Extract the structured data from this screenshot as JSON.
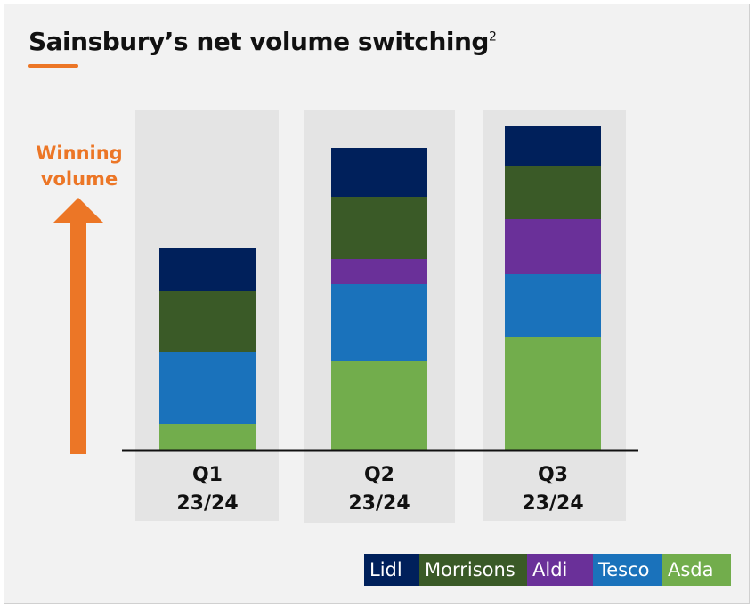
{
  "title": "Sainsbury’s net volume switching",
  "title_superscript": "2",
  "y_annotation": "Winning volume",
  "colors": {
    "accent": "#ec7626",
    "Lidl": "#00205b",
    "Morrisons": "#3a5a27",
    "Aldi": "#6a3099",
    "Tesco": "#1a72bb",
    "Asda": "#72ad4c",
    "panel": "#e4e4e4"
  },
  "chart_data": {
    "type": "bar",
    "stacked": true,
    "title": "Sainsbury’s net volume switching",
    "xlabel": "",
    "ylabel": "Winning volume",
    "categories": [
      [
        "Q1",
        "23/24"
      ],
      [
        "Q2",
        "23/24"
      ],
      [
        "Q3",
        "23/24"
      ]
    ],
    "ylim": [
      0,
      38
    ],
    "note": "relative units; no axis values shown",
    "series": [
      {
        "name": "Asda",
        "values": [
          3.0,
          10.1,
          12.7
        ]
      },
      {
        "name": "Tesco",
        "values": [
          8.1,
          8.6,
          7.1
        ]
      },
      {
        "name": "Aldi",
        "values": [
          0,
          2.8,
          6.2
        ]
      },
      {
        "name": "Morrisons",
        "values": [
          6.8,
          7.0,
          5.9
        ]
      },
      {
        "name": "Lidl",
        "values": [
          4.9,
          5.5,
          4.5
        ]
      }
    ],
    "legend": [
      "Lidl",
      "Morrisons",
      "Aldi",
      "Tesco",
      "Asda"
    ],
    "legend_position": "bottom-right",
    "grid": false
  }
}
